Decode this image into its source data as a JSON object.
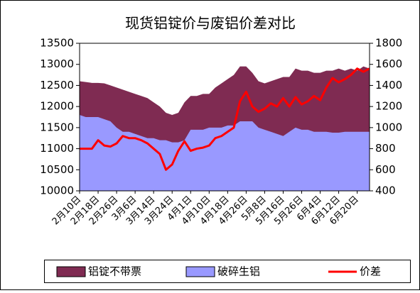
{
  "chart_data": {
    "type": "area",
    "title": "现货铝锭价与废铝价差对比",
    "categories": [
      "2月10日",
      null,
      null,
      "2月18日",
      null,
      null,
      "2月26日",
      null,
      null,
      "3月6日",
      null,
      null,
      "3月14日",
      null,
      null,
      "3月24日",
      null,
      null,
      "4月1日",
      null,
      null,
      "4月10日",
      null,
      null,
      "4月18日",
      null,
      null,
      "4月26日",
      null,
      null,
      "5月8日",
      null,
      null,
      "5月16日",
      null,
      null,
      "5月26日",
      null,
      null,
      "6月4日",
      null,
      null,
      "6月12日",
      null,
      null,
      "6月20日",
      null,
      null
    ],
    "series": [
      {
        "name": "铝锭不带票",
        "type": "area",
        "color": "#7f2b52",
        "axis": "y",
        "values": [
          12600,
          12580,
          12560,
          12560,
          12550,
          12500,
          12450,
          12400,
          12350,
          12300,
          12250,
          12200,
          12100,
          12000,
          11850,
          11800,
          11850,
          12100,
          12250,
          12250,
          12300,
          12300,
          12450,
          12550,
          12650,
          12750,
          12950,
          12950,
          12800,
          12600,
          12550,
          12600,
          12650,
          12700,
          12700,
          12900,
          12850,
          12850,
          12800,
          12800,
          12850,
          12850,
          12900,
          12850,
          12900,
          12850,
          12950,
          12900
        ]
      },
      {
        "name": "破碎生铝",
        "type": "area",
        "color": "#9999ff",
        "axis": "y",
        "values": [
          11800,
          11750,
          11750,
          11750,
          11700,
          11650,
          11500,
          11400,
          11400,
          11350,
          11300,
          11250,
          11250,
          11200,
          11200,
          11150,
          11150,
          11200,
          11450,
          11450,
          11450,
          11500,
          11500,
          11500,
          11550,
          11550,
          11650,
          11650,
          11650,
          11500,
          11450,
          11400,
          11350,
          11300,
          11400,
          11500,
          11450,
          11450,
          11400,
          11400,
          11400,
          11380,
          11380,
          11400,
          11400,
          11400,
          11400,
          11400
        ]
      },
      {
        "name": "价差",
        "type": "line",
        "color": "#ff0000",
        "axis": "y2",
        "values": [
          800,
          800,
          800,
          880,
          830,
          820,
          850,
          920,
          900,
          900,
          880,
          850,
          800,
          750,
          600,
          650,
          780,
          870,
          780,
          800,
          810,
          830,
          900,
          920,
          960,
          1000,
          1250,
          1340,
          1200,
          1150,
          1180,
          1230,
          1200,
          1280,
          1200,
          1290,
          1220,
          1250,
          1300,
          1260,
          1380,
          1470,
          1430,
          1460,
          1500,
          1560,
          1530,
          1560
        ]
      }
    ],
    "ylim": [
      10000,
      13500
    ],
    "yticks": [
      10000,
      10500,
      11000,
      11500,
      12000,
      12500,
      13000,
      13500
    ],
    "y2lim": [
      400,
      1800
    ],
    "y2ticks": [
      400,
      600,
      800,
      1000,
      1200,
      1400,
      1600,
      1800
    ],
    "legend": "bottom"
  }
}
